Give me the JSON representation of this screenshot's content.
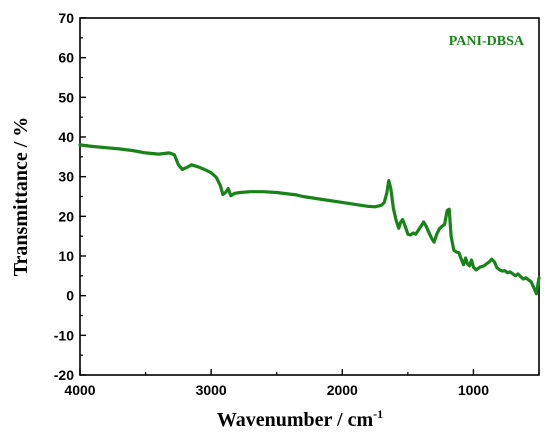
{
  "chart_data": {
    "type": "line",
    "xlabel": "Wavenumber / cm",
    "xlabel_superscript": "-1",
    "ylabel": "Transmittance / %",
    "xlim": [
      4000,
      500
    ],
    "ylim": [
      -20,
      70
    ],
    "x_reversed": true,
    "grid": false,
    "legend_position": "top-right",
    "x_ticks": [
      4000,
      3000,
      2000,
      1000
    ],
    "y_ticks": [
      -20,
      -10,
      0,
      10,
      20,
      30,
      40,
      50,
      60,
      70
    ],
    "series": [
      {
        "name": "PANI-DBSA",
        "color": "#188318",
        "points": [
          [
            4000,
            38.0
          ],
          [
            3900,
            37.6
          ],
          [
            3800,
            37.3
          ],
          [
            3700,
            37.0
          ],
          [
            3600,
            36.6
          ],
          [
            3500,
            36.0
          ],
          [
            3400,
            35.7
          ],
          [
            3320,
            36.0
          ],
          [
            3280,
            35.5
          ],
          [
            3250,
            33.0
          ],
          [
            3220,
            31.8
          ],
          [
            3180,
            32.4
          ],
          [
            3150,
            33.0
          ],
          [
            3100,
            32.5
          ],
          [
            3050,
            31.8
          ],
          [
            3000,
            31.0
          ],
          [
            2960,
            29.8
          ],
          [
            2930,
            27.8
          ],
          [
            2910,
            25.5
          ],
          [
            2890,
            26.0
          ],
          [
            2870,
            27.0
          ],
          [
            2850,
            25.2
          ],
          [
            2820,
            25.8
          ],
          [
            2780,
            26.0
          ],
          [
            2700,
            26.2
          ],
          [
            2600,
            26.2
          ],
          [
            2500,
            26.0
          ],
          [
            2400,
            25.6
          ],
          [
            2350,
            25.4
          ],
          [
            2300,
            25.0
          ],
          [
            2200,
            24.5
          ],
          [
            2100,
            24.0
          ],
          [
            2000,
            23.5
          ],
          [
            1900,
            23.0
          ],
          [
            1800,
            22.5
          ],
          [
            1750,
            22.4
          ],
          [
            1700,
            22.8
          ],
          [
            1680,
            23.5
          ],
          [
            1660,
            26.0
          ],
          [
            1645,
            29.0
          ],
          [
            1630,
            27.0
          ],
          [
            1610,
            22.0
          ],
          [
            1590,
            19.0
          ],
          [
            1570,
            17.0
          ],
          [
            1555,
            18.5
          ],
          [
            1540,
            19.2
          ],
          [
            1520,
            17.5
          ],
          [
            1500,
            15.5
          ],
          [
            1480,
            15.3
          ],
          [
            1460,
            15.8
          ],
          [
            1440,
            15.5
          ],
          [
            1420,
            16.5
          ],
          [
            1400,
            17.5
          ],
          [
            1380,
            18.6
          ],
          [
            1360,
            17.5
          ],
          [
            1340,
            16.0
          ],
          [
            1320,
            14.5
          ],
          [
            1300,
            13.5
          ],
          [
            1280,
            15.5
          ],
          [
            1260,
            16.8
          ],
          [
            1240,
            17.5
          ],
          [
            1220,
            18.0
          ],
          [
            1200,
            21.5
          ],
          [
            1185,
            21.8
          ],
          [
            1170,
            15.0
          ],
          [
            1150,
            11.5
          ],
          [
            1130,
            11.0
          ],
          [
            1110,
            10.8
          ],
          [
            1090,
            9.0
          ],
          [
            1075,
            7.8
          ],
          [
            1060,
            9.5
          ],
          [
            1045,
            8.0
          ],
          [
            1030,
            7.5
          ],
          [
            1015,
            9.0
          ],
          [
            1000,
            7.2
          ],
          [
            980,
            6.5
          ],
          [
            950,
            7.2
          ],
          [
            920,
            7.5
          ],
          [
            900,
            8.0
          ],
          [
            880,
            8.5
          ],
          [
            860,
            9.2
          ],
          [
            840,
            8.5
          ],
          [
            820,
            7.0
          ],
          [
            800,
            6.5
          ],
          [
            780,
            6.2
          ],
          [
            760,
            6.3
          ],
          [
            740,
            5.8
          ],
          [
            720,
            6.0
          ],
          [
            700,
            5.5
          ],
          [
            680,
            5.0
          ],
          [
            660,
            5.5
          ],
          [
            640,
            4.8
          ],
          [
            620,
            4.2
          ],
          [
            600,
            4.5
          ],
          [
            580,
            4.0
          ],
          [
            560,
            3.5
          ],
          [
            540,
            2.0
          ],
          [
            520,
            0.5
          ],
          [
            510,
            2.5
          ],
          [
            500,
            4.5
          ]
        ]
      }
    ]
  }
}
